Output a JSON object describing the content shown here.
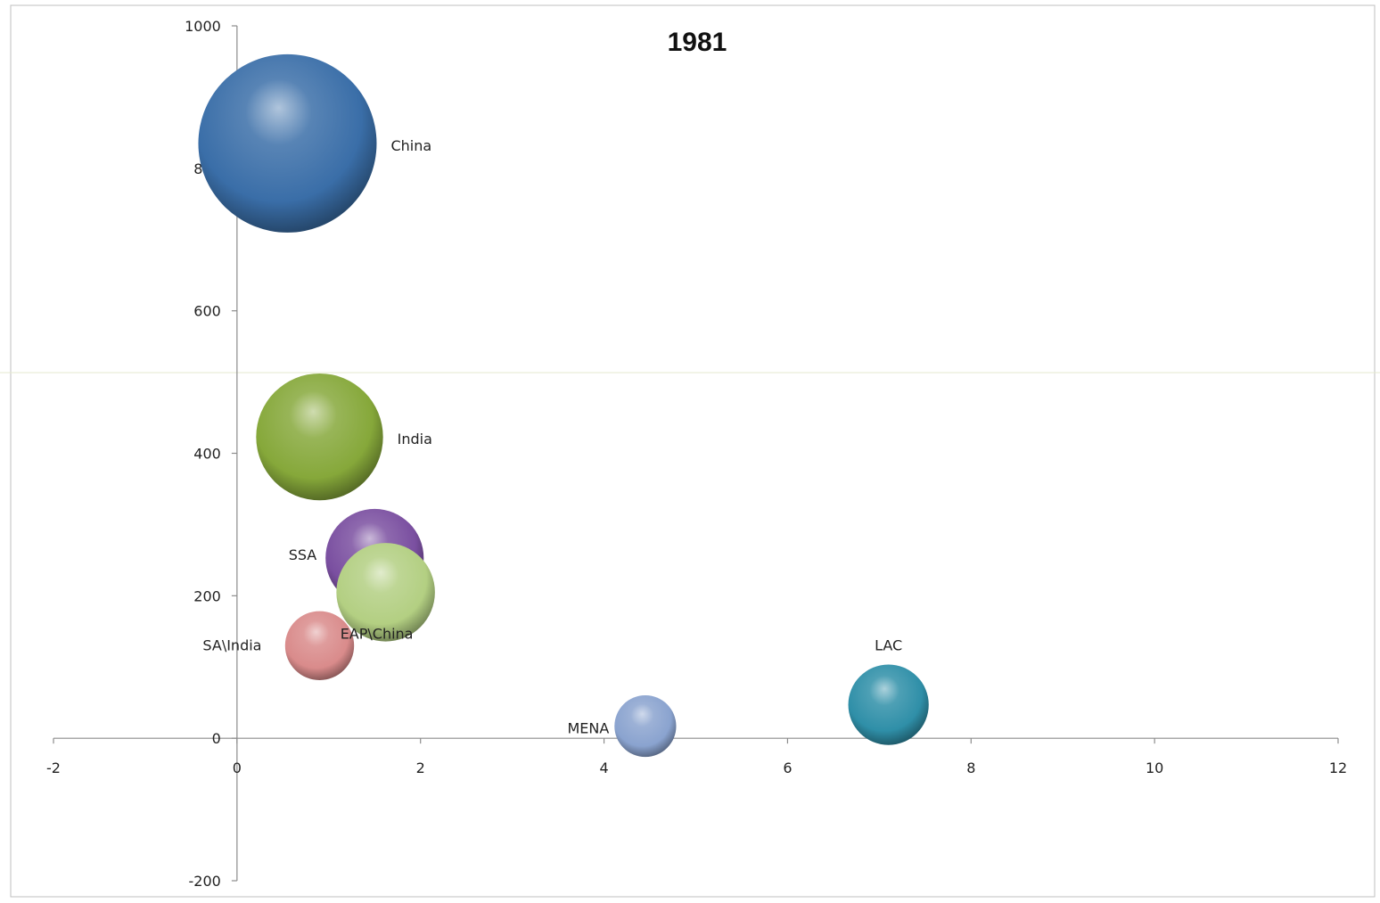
{
  "chart_data": {
    "type": "bubble",
    "title": "1981",
    "xlabel": "",
    "ylabel": "",
    "xlim": [
      -2,
      12
    ],
    "ylim": [
      -200,
      1000
    ],
    "x_ticks": [
      -2,
      0,
      2,
      4,
      6,
      8,
      10,
      12
    ],
    "y_ticks": [
      -200,
      0,
      200,
      400,
      600,
      800,
      1000
    ],
    "grid": false,
    "legend": "none",
    "series": [
      {
        "name": "China",
        "x": 0.55,
        "y": 835,
        "size": 835,
        "color": "#3a6ea8",
        "label_pos": "right"
      },
      {
        "name": "India",
        "x": 0.9,
        "y": 423,
        "size": 423,
        "color": "#86a83a",
        "label_pos": "right"
      },
      {
        "name": "SSA",
        "x": 1.5,
        "y": 253,
        "size": 253,
        "color": "#7a4fa0",
        "label_pos": "left"
      },
      {
        "name": "EAP\\China",
        "x": 1.62,
        "y": 205,
        "size": 255,
        "color": "#b3cf82",
        "label_pos": "below"
      },
      {
        "name": "SA\\India",
        "x": 0.9,
        "y": 130,
        "size": 125,
        "color": "#d98b8b",
        "label_pos": "left"
      },
      {
        "name": "MENA",
        "x": 4.45,
        "y": 17,
        "size": 100,
        "color": "#8aa3cf",
        "label_pos": "left"
      },
      {
        "name": "LAC",
        "x": 7.1,
        "y": 47,
        "size": 170,
        "color": "#2f8fa8",
        "label_pos": "above"
      }
    ]
  }
}
